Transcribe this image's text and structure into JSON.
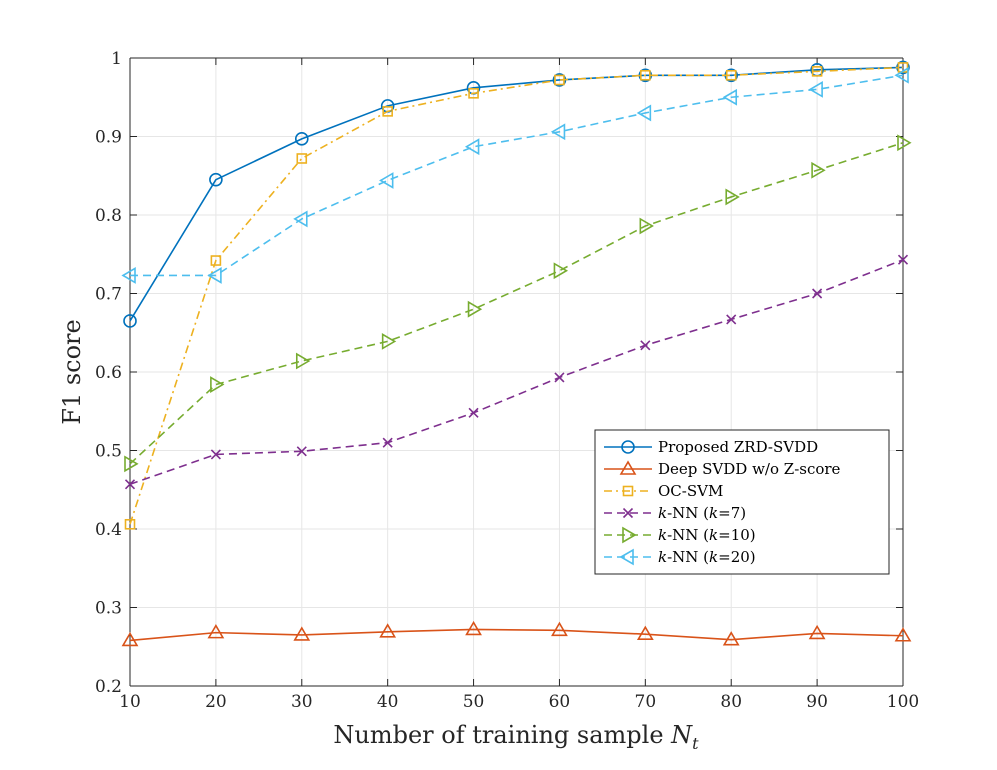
{
  "chart_data": {
    "type": "line",
    "title": "",
    "xlabel": "Number of training sample",
    "xlabel_symbol": "N",
    "xlabel_subscript": "t",
    "ylabel": "F1 score",
    "xlim": [
      10,
      100
    ],
    "ylim": [
      0.2,
      1.0
    ],
    "grid": true,
    "legend_position": "lower-right",
    "x": [
      10,
      20,
      30,
      40,
      50,
      60,
      70,
      80,
      90,
      100
    ],
    "x_tick_labels": [
      "10",
      "20",
      "30",
      "40",
      "50",
      "60",
      "70",
      "80",
      "90",
      "100"
    ],
    "y_ticks": [
      0.2,
      0.3,
      0.4,
      0.5,
      0.6,
      0.7,
      0.8,
      0.9,
      1.0
    ],
    "y_tick_labels": [
      "0.2",
      "0.3",
      "0.4",
      "0.5",
      "0.6",
      "0.7",
      "0.8",
      "0.9",
      "1"
    ],
    "series": [
      {
        "name": "Proposed ZRD-SVDD",
        "label_parts": [
          "Proposed ZRD-SVDD"
        ],
        "color": "#0072BD",
        "line": "solid",
        "marker": "circle",
        "values": [
          0.665,
          0.845,
          0.897,
          0.939,
          0.962,
          0.972,
          0.978,
          0.978,
          0.985,
          0.988
        ]
      },
      {
        "name": "Deep SVDD w/o Z-score",
        "label_parts": [
          "Deep SVDD w/o Z-score"
        ],
        "color": "#D95319",
        "line": "solid",
        "marker": "triangle-up",
        "values": [
          0.258,
          0.268,
          0.265,
          0.269,
          0.272,
          0.271,
          0.266,
          0.259,
          0.267,
          0.264
        ]
      },
      {
        "name": "OC-SVM",
        "label_parts": [
          "OC-SVM"
        ],
        "color": "#EDB120",
        "line": "dashdot",
        "marker": "square",
        "values": [
          0.406,
          0.742,
          0.872,
          0.932,
          0.955,
          0.972,
          0.978,
          0.978,
          0.983,
          0.988
        ]
      },
      {
        "name": "k-NN (k=7)",
        "label_parts": [
          "k",
          "-NN (",
          "k",
          "=7)"
        ],
        "color": "#7E2F8E",
        "line": "dashed",
        "marker": "x",
        "values": [
          0.457,
          0.495,
          0.499,
          0.51,
          0.548,
          0.593,
          0.634,
          0.667,
          0.7,
          0.743
        ]
      },
      {
        "name": "k-NN (k=10)",
        "label_parts": [
          "k",
          "-NN (",
          "k",
          "=10)"
        ],
        "color": "#77AC30",
        "line": "dashed",
        "marker": "triangle-right",
        "values": [
          0.483,
          0.584,
          0.614,
          0.639,
          0.68,
          0.729,
          0.786,
          0.823,
          0.857,
          0.892
        ]
      },
      {
        "name": "k-NN (k=20)",
        "label_parts": [
          "k",
          "-NN (",
          "k",
          "=20)"
        ],
        "color": "#4DBEEE",
        "line": "dashed",
        "marker": "triangle-left",
        "values": [
          0.723,
          0.723,
          0.795,
          0.844,
          0.887,
          0.906,
          0.93,
          0.95,
          0.96,
          0.978
        ]
      }
    ]
  }
}
